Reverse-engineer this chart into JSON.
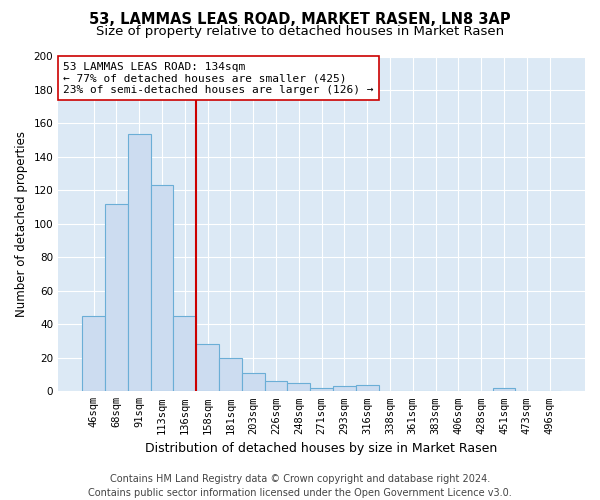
{
  "title": "53, LAMMAS LEAS ROAD, MARKET RASEN, LN8 3AP",
  "subtitle": "Size of property relative to detached houses in Market Rasen",
  "xlabel": "Distribution of detached houses by size in Market Rasen",
  "ylabel": "Number of detached properties",
  "bar_labels": [
    "46sqm",
    "68sqm",
    "91sqm",
    "113sqm",
    "136sqm",
    "158sqm",
    "181sqm",
    "203sqm",
    "226sqm",
    "248sqm",
    "271sqm",
    "293sqm",
    "316sqm",
    "338sqm",
    "361sqm",
    "383sqm",
    "406sqm",
    "428sqm",
    "451sqm",
    "473sqm",
    "496sqm"
  ],
  "bar_values": [
    45,
    112,
    154,
    123,
    45,
    28,
    20,
    11,
    6,
    5,
    2,
    3,
    4,
    0,
    0,
    0,
    0,
    0,
    2,
    0,
    0
  ],
  "bar_color": "#ccdcf0",
  "bar_edge_color": "#6baed6",
  "vline_index": 4,
  "vline_color": "#cc0000",
  "annotation_line1": "53 LAMMAS LEAS ROAD: 134sqm",
  "annotation_line2": "← 77% of detached houses are smaller (425)",
  "annotation_line3": "23% of semi-detached houses are larger (126) →",
  "annotation_box_color": "#ffffff",
  "annotation_box_edge": "#cc0000",
  "ylim_max": 200,
  "yticks": [
    0,
    20,
    40,
    60,
    80,
    100,
    120,
    140,
    160,
    180,
    200
  ],
  "bg_color": "#dce9f5",
  "footer_text": "Contains HM Land Registry data © Crown copyright and database right 2024.\nContains public sector information licensed under the Open Government Licence v3.0.",
  "title_fontsize": 10.5,
  "subtitle_fontsize": 9.5,
  "xlabel_fontsize": 9,
  "ylabel_fontsize": 8.5,
  "tick_fontsize": 7.5,
  "annotation_fontsize": 8,
  "footer_fontsize": 7
}
